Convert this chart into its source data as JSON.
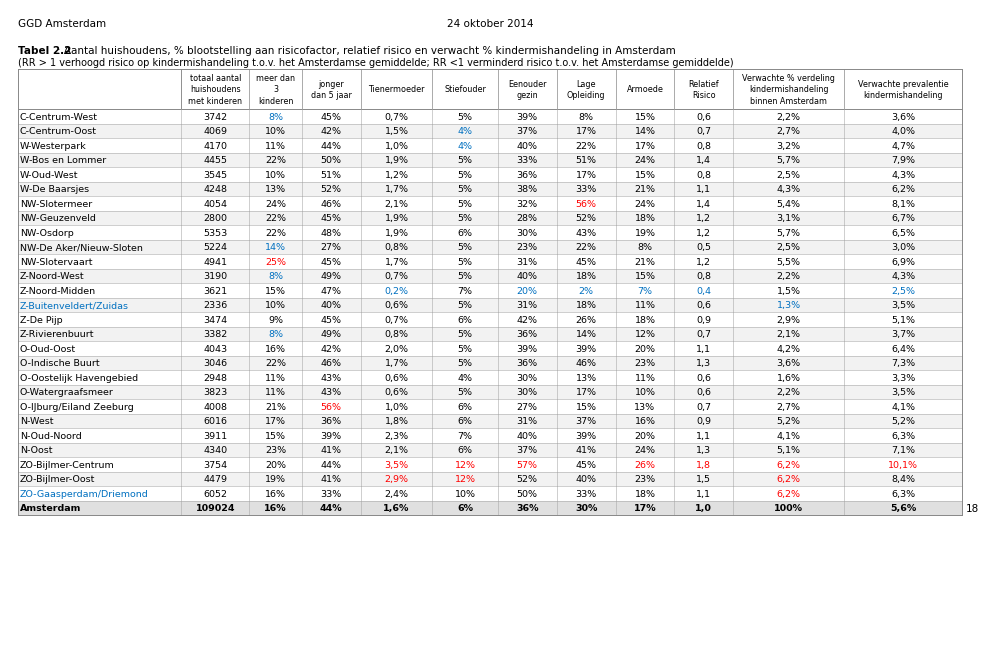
{
  "header_line1": "GGD Amsterdam",
  "header_line2": "24 oktober 2014",
  "title_bold": "Tabel 2.2",
  "title_rest": ": Aantal huishoudens, % blootstelling aan risicofactor, relatief risico en verwacht % kindermishandeling in Amsterdam",
  "subtitle": "(RR > 1 verhoogd risico op kindermishandeling t.o.v. het Amsterdamse gemiddelde; RR <1 verminderd risico t.o.v. het Amsterdamse gemiddelde)",
  "header_texts": [
    "totaal aantal\nhuishoudens\nmet kinderen",
    "meer dan\n3\nkinderen",
    "jonger\ndan 5 jaar",
    "Tienermoeder",
    "Stiefouder",
    "Eenouder\ngezin",
    "Lage\nOpleiding",
    "Armoede",
    "Relatief\nRisico",
    "Verwachte % verdeling\nkindermishandeling\nbinnen Amsterdam",
    "Verwachte prevalentie\nkindermishandeling"
  ],
  "rows": [
    [
      "C-Centrum-West",
      "3742",
      "8%",
      "45%",
      "0,7%",
      "5%",
      "39%",
      "8%",
      "15%",
      "0,6",
      "2,2%",
      "3,6%"
    ],
    [
      "C-Centrum-Oost",
      "4069",
      "10%",
      "42%",
      "1,5%",
      "4%",
      "37%",
      "17%",
      "14%",
      "0,7",
      "2,7%",
      "4,0%"
    ],
    [
      "W-Westerpark",
      "4170",
      "11%",
      "44%",
      "1,0%",
      "4%",
      "40%",
      "22%",
      "17%",
      "0,8",
      "3,2%",
      "4,7%"
    ],
    [
      "W-Bos en Lommer",
      "4455",
      "22%",
      "50%",
      "1,9%",
      "5%",
      "33%",
      "51%",
      "24%",
      "1,4",
      "5,7%",
      "7,9%"
    ],
    [
      "W-Oud-West",
      "3545",
      "10%",
      "51%",
      "1,2%",
      "5%",
      "36%",
      "17%",
      "15%",
      "0,8",
      "2,5%",
      "4,3%"
    ],
    [
      "W-De Baarsjes",
      "4248",
      "13%",
      "52%",
      "1,7%",
      "5%",
      "38%",
      "33%",
      "21%",
      "1,1",
      "4,3%",
      "6,2%"
    ],
    [
      "NW-Slotermeer",
      "4054",
      "24%",
      "46%",
      "2,1%",
      "5%",
      "32%",
      "56%",
      "24%",
      "1,4",
      "5,4%",
      "8,1%"
    ],
    [
      "NW-Geuzenveld",
      "2800",
      "22%",
      "45%",
      "1,9%",
      "5%",
      "28%",
      "52%",
      "18%",
      "1,2",
      "3,1%",
      "6,7%"
    ],
    [
      "NW-Osdorp",
      "5353",
      "22%",
      "48%",
      "1,9%",
      "6%",
      "30%",
      "43%",
      "19%",
      "1,2",
      "5,7%",
      "6,5%"
    ],
    [
      "NW-De Aker/Nieuw-Sloten",
      "5224",
      "14%",
      "27%",
      "0,8%",
      "5%",
      "23%",
      "22%",
      "8%",
      "0,5",
      "2,5%",
      "3,0%"
    ],
    [
      "NW-Slotervaart",
      "4941",
      "25%",
      "45%",
      "1,7%",
      "5%",
      "31%",
      "45%",
      "21%",
      "1,2",
      "5,5%",
      "6,9%"
    ],
    [
      "Z-Noord-West",
      "3190",
      "8%",
      "49%",
      "0,7%",
      "5%",
      "40%",
      "18%",
      "15%",
      "0,8",
      "2,2%",
      "4,3%"
    ],
    [
      "Z-Noord-Midden",
      "3621",
      "15%",
      "47%",
      "0,2%",
      "7%",
      "20%",
      "2%",
      "7%",
      "0,4",
      "1,5%",
      "2,5%"
    ],
    [
      "Z-Buitenveldert/Zuidas",
      "2336",
      "10%",
      "40%",
      "0,6%",
      "5%",
      "31%",
      "18%",
      "11%",
      "0,6",
      "1,3%",
      "3,5%"
    ],
    [
      "Z-De Pijp",
      "3474",
      "9%",
      "45%",
      "0,7%",
      "6%",
      "42%",
      "26%",
      "18%",
      "0,9",
      "2,9%",
      "5,1%"
    ],
    [
      "Z-Rivierenbuurt",
      "3382",
      "8%",
      "49%",
      "0,8%",
      "5%",
      "36%",
      "14%",
      "12%",
      "0,7",
      "2,1%",
      "3,7%"
    ],
    [
      "O-Oud-Oost",
      "4043",
      "16%",
      "42%",
      "2,0%",
      "5%",
      "39%",
      "39%",
      "20%",
      "1,1",
      "4,2%",
      "6,4%"
    ],
    [
      "O-Indische Buurt",
      "3046",
      "22%",
      "46%",
      "1,7%",
      "5%",
      "36%",
      "46%",
      "23%",
      "1,3",
      "3,6%",
      "7,3%"
    ],
    [
      "O-Oostelijk Havengebied",
      "2948",
      "11%",
      "43%",
      "0,6%",
      "4%",
      "30%",
      "13%",
      "11%",
      "0,6",
      "1,6%",
      "3,3%"
    ],
    [
      "O-Watergraafsmeer",
      "3823",
      "11%",
      "43%",
      "0,6%",
      "5%",
      "30%",
      "17%",
      "10%",
      "0,6",
      "2,2%",
      "3,5%"
    ],
    [
      "O-IJburg/Eiland Zeeburg",
      "4008",
      "21%",
      "56%",
      "1,0%",
      "6%",
      "27%",
      "15%",
      "13%",
      "0,7",
      "2,7%",
      "4,1%"
    ],
    [
      "N-West",
      "6016",
      "17%",
      "36%",
      "1,8%",
      "6%",
      "31%",
      "37%",
      "16%",
      "0,9",
      "5,2%",
      "5,2%"
    ],
    [
      "N-Oud-Noord",
      "3911",
      "15%",
      "39%",
      "2,3%",
      "7%",
      "40%",
      "39%",
      "20%",
      "1,1",
      "4,1%",
      "6,3%"
    ],
    [
      "N-Oost",
      "4340",
      "23%",
      "41%",
      "2,1%",
      "6%",
      "37%",
      "41%",
      "24%",
      "1,3",
      "5,1%",
      "7,1%"
    ],
    [
      "ZO-Bijlmer-Centrum",
      "3754",
      "20%",
      "44%",
      "3,5%",
      "12%",
      "57%",
      "45%",
      "26%",
      "1,8",
      "6,2%",
      "10,1%"
    ],
    [
      "ZO-Bijlmer-Oost",
      "4479",
      "19%",
      "41%",
      "2,9%",
      "12%",
      "52%",
      "40%",
      "23%",
      "1,5",
      "6,2%",
      "8,4%"
    ],
    [
      "ZO-Gaasperdam/Driemond",
      "6052",
      "16%",
      "33%",
      "2,4%",
      "10%",
      "50%",
      "33%",
      "18%",
      "1,1",
      "6,2%",
      "6,3%"
    ],
    [
      "Amsterdam",
      "109024",
      "16%",
      "44%",
      "1,6%",
      "6%",
      "36%",
      "30%",
      "17%",
      "1,0",
      "100%",
      "5,6%"
    ]
  ],
  "special_colors": {
    "C-Centrum-West": {
      "2": "#0070C0"
    },
    "C-Centrum-Oost": {
      "5": "#0070C0"
    },
    "W-Westerpark": {
      "5": "#0070C0"
    },
    "NW-Slotermeer": {
      "7": "#FF0000"
    },
    "NW-De Aker/Nieuw-Sloten": {
      "2": "#0070C0"
    },
    "NW-Slotervaart": {
      "2": "#FF0000"
    },
    "Z-Noord-West": {
      "2": "#0070C0"
    },
    "Z-Noord-Midden": {
      "4": "#0070C0",
      "6": "#0070C0",
      "7": "#0070C0",
      "8": "#0070C0",
      "9": "#0070C0",
      "11": "#0070C0"
    },
    "Z-Buitenveldert/Zuidas": {
      "0": "#0070C0",
      "10": "#0070C0"
    },
    "Z-Rivierenbuurt": {
      "2": "#0070C0"
    },
    "O-IJburg/Eiland Zeeburg": {
      "3": "#FF0000"
    },
    "ZO-Bijlmer-Centrum": {
      "4": "#FF0000",
      "5": "#FF0000",
      "6": "#FF0000",
      "8": "#FF0000",
      "9": "#FF0000",
      "10": "#FF0000",
      "11": "#FF0000"
    },
    "ZO-Bijlmer-Oost": {
      "4": "#FF0000",
      "5": "#FF0000",
      "10": "#FF0000"
    },
    "ZO-Gaasperdam/Driemond": {
      "0": "#0070C0",
      "10": "#FF0000"
    }
  },
  "footer_note": "18",
  "col_widths_rel": [
    12.5,
    5.2,
    4.0,
    4.5,
    5.5,
    5.0,
    4.5,
    4.5,
    4.5,
    4.5,
    8.5,
    9.0
  ]
}
